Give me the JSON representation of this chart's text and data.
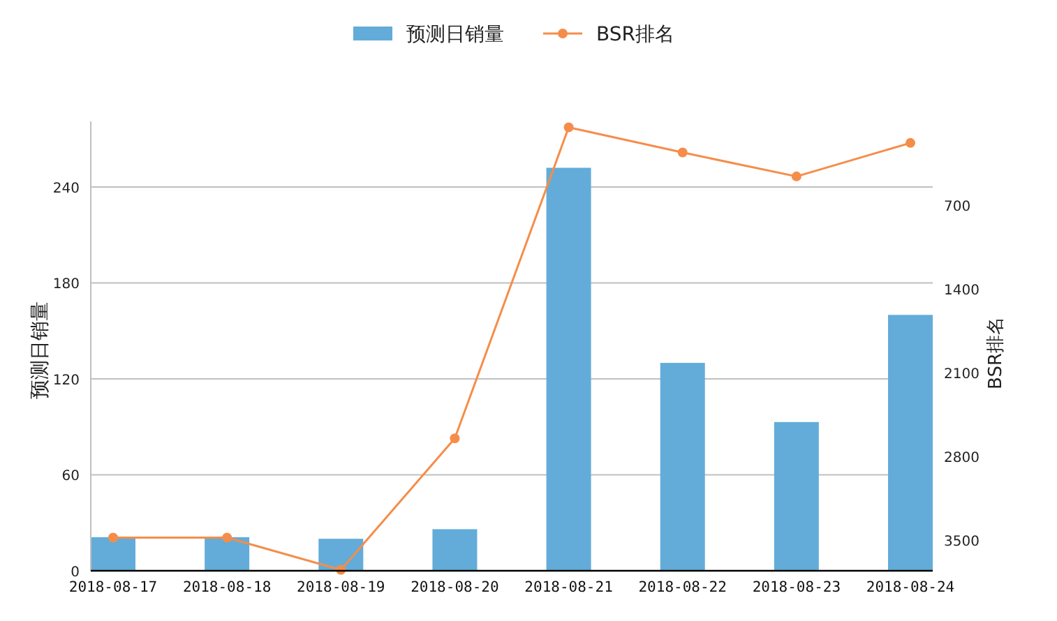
{
  "chart_data": {
    "type": "bar",
    "categories": [
      "2018-08-17",
      "2018-08-18",
      "2018-08-19",
      "2018-08-20",
      "2018-08-21",
      "2018-08-22",
      "2018-08-23",
      "2018-08-24"
    ],
    "series": [
      {
        "name": "预测日销量",
        "color": "#63acd9",
        "values": [
          21,
          21,
          20,
          26,
          252,
          130,
          93,
          160
        ]
      },
      {
        "name": "BSR排名",
        "type": "line",
        "axis": "y2",
        "color": "#f58d4a",
        "marker": "circle",
        "values": [
          3480,
          3480,
          3750,
          2650,
          50,
          260,
          460,
          180
        ]
      }
    ],
    "ylabel": "预测日销量",
    "y2label": "BSR排名",
    "ylim": [
      0,
      281
    ],
    "yticks": [
      0,
      60,
      120,
      180,
      240
    ],
    "y2lim": [
      3757,
      0
    ],
    "y2ticks": [
      700,
      1400,
      2100,
      2800,
      3500
    ],
    "grid": "y",
    "legend": "top"
  }
}
